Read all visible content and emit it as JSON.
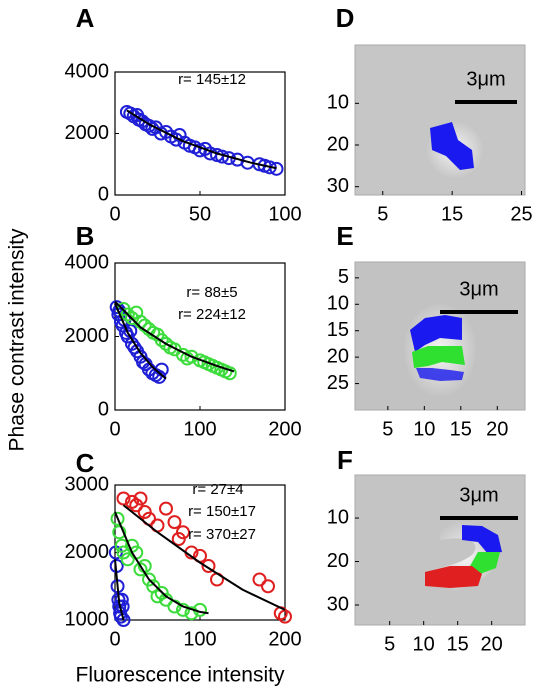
{
  "figure": {
    "y_label": "Phase contrast intensity",
    "x_label": "Fluorescence intensity"
  },
  "chart_data": [
    {
      "type": "scatter",
      "panel": "A",
      "xlim": [
        0,
        100
      ],
      "ylim": [
        0,
        4000
      ],
      "xticks": [
        0,
        50,
        100
      ],
      "yticks": [
        0,
        2000,
        4000
      ],
      "series": [
        {
          "color": "#1f1fd6",
          "x": [
            7,
            9,
            11,
            13,
            14,
            16,
            18,
            20,
            22,
            24,
            27,
            30,
            33,
            36,
            38,
            41,
            44,
            47,
            50,
            53,
            56,
            60,
            63,
            67,
            72,
            78,
            85,
            88,
            91,
            95
          ],
          "values": [
            2700,
            2650,
            2560,
            2600,
            2450,
            2400,
            2300,
            2250,
            2150,
            2200,
            2000,
            2050,
            1900,
            1800,
            1950,
            1700,
            1600,
            1550,
            1450,
            1500,
            1350,
            1300,
            1250,
            1200,
            1150,
            1050,
            1000,
            950,
            900,
            850
          ],
          "fit_x": [
            7,
            20,
            40,
            60,
            80,
            95
          ],
          "fit_values": [
            2750,
            2300,
            1750,
            1350,
            1050,
            870
          ]
        }
      ],
      "annotations": [
        {
          "text": "r= 145±12",
          "color": "#1f1fd6"
        }
      ]
    },
    {
      "type": "scatter",
      "panel": "B",
      "xlim": [
        0,
        200
      ],
      "ylim": [
        0,
        4000
      ],
      "xticks": [
        0,
        100,
        200
      ],
      "yticks": [
        0,
        2000,
        4000
      ],
      "series": [
        {
          "color": "#1f1fd6",
          "x": [
            2,
            4,
            5,
            7,
            9,
            11,
            13,
            15,
            18,
            20,
            23,
            26,
            30,
            33,
            36,
            40,
            44,
            48,
            52,
            55
          ],
          "values": [
            2800,
            2600,
            2700,
            2400,
            2300,
            2450,
            2100,
            2000,
            2150,
            1800,
            1700,
            1600,
            1450,
            1300,
            1250,
            1100,
            1000,
            950,
            900,
            1100
          ],
          "fit_x": [
            0,
            15,
            30,
            45,
            60
          ],
          "fit_values": [
            2900,
            2100,
            1550,
            1150,
            850
          ]
        },
        {
          "color": "#3ddc3d",
          "x": [
            10,
            15,
            20,
            25,
            30,
            35,
            40,
            45,
            50,
            55,
            60,
            65,
            70,
            80,
            85,
            90,
            100,
            105,
            110,
            115,
            120,
            125,
            130,
            135
          ],
          "values": [
            2750,
            2600,
            2500,
            2650,
            2400,
            2300,
            2200,
            2100,
            2050,
            1900,
            1800,
            1700,
            1650,
            1500,
            1400,
            1450,
            1350,
            1300,
            1250,
            1200,
            1150,
            1100,
            1050,
            1000
          ],
          "fit_x": [
            0,
            30,
            60,
            90,
            120,
            140
          ],
          "fit_values": [
            2950,
            2250,
            1800,
            1450,
            1200,
            1050
          ]
        }
      ],
      "annotations": [
        {
          "text": "r= 88±5",
          "color": "#1f1fd6"
        },
        {
          "text": "r= 224±12",
          "color": "#3ddc3d"
        }
      ]
    },
    {
      "type": "scatter",
      "panel": "C",
      "xlim": [
        0,
        200
      ],
      "ylim": [
        1000,
        3000
      ],
      "xticks": [
        0,
        100,
        200
      ],
      "yticks": [
        1000,
        2000,
        3000
      ],
      "series": [
        {
          "color": "#1f1fd6",
          "x": [
            1,
            2,
            3,
            4,
            5,
            6,
            7,
            8,
            9,
            10
          ],
          "values": [
            2000,
            1800,
            1500,
            1300,
            1200,
            1100,
            1050,
            1300,
            1200,
            1000
          ],
          "fit_x": [
            0,
            5,
            10
          ],
          "fit_values": [
            1900,
            1250,
            1000
          ]
        },
        {
          "color": "#3ddc3d",
          "x": [
            3,
            5,
            8,
            10,
            15,
            20,
            25,
            30,
            35,
            40,
            45,
            50,
            55,
            60,
            70,
            80,
            90,
            100
          ],
          "values": [
            2500,
            2300,
            2100,
            2000,
            1900,
            2100,
            2000,
            1750,
            1800,
            1600,
            1500,
            1350,
            1400,
            1300,
            1200,
            1150,
            1100,
            1150
          ],
          "fit_x": [
            0,
            20,
            40,
            60,
            80,
            100,
            110
          ],
          "fit_values": [
            2600,
            2000,
            1600,
            1350,
            1200,
            1120,
            1100
          ]
        },
        {
          "color": "#e02020",
          "x": [
            10,
            20,
            25,
            30,
            35,
            40,
            50,
            60,
            70,
            75,
            80,
            90,
            100,
            110,
            120,
            170,
            180,
            195,
            200
          ],
          "values": [
            2800,
            2750,
            2700,
            2800,
            2600,
            2500,
            2400,
            2650,
            2450,
            2200,
            2300,
            2000,
            1950,
            1800,
            1600,
            1600,
            1500,
            1100,
            1050
          ],
          "fit_x": [
            10,
            50,
            100,
            150,
            200
          ],
          "fit_values": [
            2700,
            2300,
            1850,
            1450,
            1150
          ]
        }
      ],
      "annotations": [
        {
          "text": "r= 27±4",
          "color": "#1f1fd6"
        },
        {
          "text": "r= 150±17",
          "color": "#3ddc3d"
        },
        {
          "text": "r= 370±27",
          "color": "#e02020"
        }
      ]
    },
    {
      "type": "image",
      "panel": "D",
      "xlim": [
        1,
        25.5
      ],
      "ylim": [
        32,
        -4
      ],
      "xticks": [
        5,
        15,
        25
      ],
      "yticks": [
        10,
        20,
        30
      ],
      "scale_bar": "3μm"
    },
    {
      "type": "image",
      "panel": "E",
      "xlim": [
        0.5,
        23.8
      ],
      "ylim": [
        30,
        2
      ],
      "xticks": [
        5,
        10,
        15,
        20
      ],
      "yticks": [
        5,
        10,
        15,
        20,
        25
      ],
      "scale_bar": "3μm"
    },
    {
      "type": "image",
      "panel": "F",
      "xlim": [
        -0.1,
        24.9
      ],
      "ylim": [
        34.6,
        0.1
      ],
      "xticks": [
        5,
        10,
        15,
        20
      ],
      "yticks": [
        10,
        20,
        30
      ],
      "scale_bar": "3μm"
    }
  ]
}
